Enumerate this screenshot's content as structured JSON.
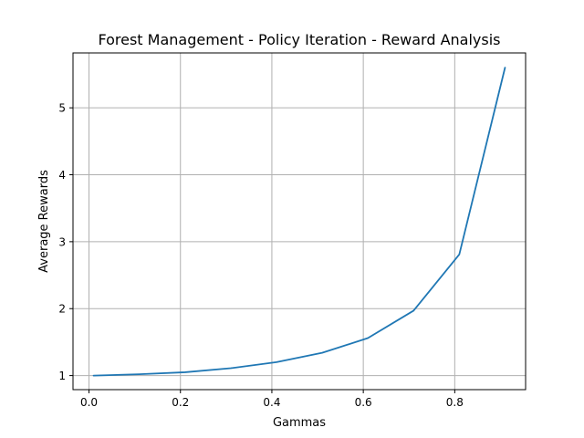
{
  "chart_data": {
    "type": "line",
    "title": "Forest Management - Policy Iteration - Reward Analysis",
    "xlabel": "Gammas",
    "ylabel": "Average Rewards",
    "xlim": [
      -0.035,
      0.955
    ],
    "ylim": [
      0.79,
      5.82
    ],
    "xticks": [
      0.0,
      0.2,
      0.4,
      0.6,
      0.8
    ],
    "xtick_labels": [
      "0.0",
      "0.2",
      "0.4",
      "0.6",
      "0.8"
    ],
    "yticks": [
      1,
      2,
      3,
      4,
      5
    ],
    "ytick_labels": [
      "1",
      "2",
      "3",
      "4",
      "5"
    ],
    "grid": true,
    "line_color": "#1f77b4",
    "series": [
      {
        "x": [
          0.01,
          0.11,
          0.21,
          0.31,
          0.41,
          0.51,
          0.61,
          0.71,
          0.81,
          0.91
        ],
        "values": [
          1.0,
          1.02,
          1.05,
          1.11,
          1.2,
          1.34,
          1.56,
          1.97,
          2.81,
          5.6
        ]
      }
    ]
  }
}
